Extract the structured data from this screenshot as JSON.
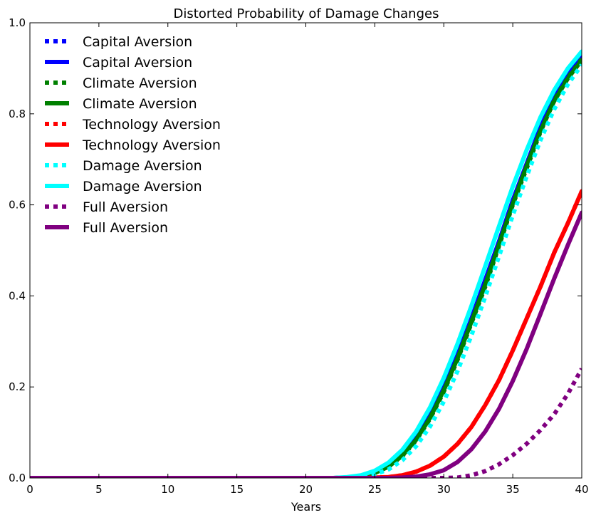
{
  "chart_data": {
    "type": "line",
    "title": "Distorted Probability of Damage Changes",
    "xlabel": "Years",
    "ylabel": "",
    "xlim": [
      0,
      40
    ],
    "ylim": [
      0,
      1.0
    ],
    "x_ticks": [
      0,
      5,
      10,
      15,
      20,
      25,
      30,
      35,
      40
    ],
    "y_ticks": [
      0.0,
      0.2,
      0.4,
      0.6,
      0.8,
      1.0
    ],
    "y_tick_labels": [
      "0.0",
      "0.2",
      "0.4",
      "0.6",
      "0.8",
      "1.0"
    ],
    "grid": false,
    "legend_position": "upper-left",
    "x": [
      0,
      5,
      10,
      15,
      20,
      22,
      23,
      24,
      25,
      26,
      27,
      28,
      29,
      30,
      31,
      32,
      33,
      34,
      35,
      36,
      37,
      38,
      39,
      40
    ],
    "series": [
      {
        "name": "Capital Aversion",
        "style": "dotted",
        "color": "#0000ff",
        "values": [
          0,
          0,
          0,
          0,
          0,
          0,
          0.001,
          0.004,
          0.011,
          0.025,
          0.048,
          0.083,
          0.13,
          0.19,
          0.26,
          0.34,
          0.42,
          0.51,
          0.6,
          0.68,
          0.76,
          0.83,
          0.88,
          0.92
        ]
      },
      {
        "name": "Capital Aversion",
        "style": "solid",
        "color": "#0000ff",
        "values": [
          0,
          0,
          0,
          0,
          0,
          0,
          0.001,
          0.004,
          0.012,
          0.027,
          0.052,
          0.088,
          0.137,
          0.198,
          0.27,
          0.35,
          0.435,
          0.52,
          0.61,
          0.69,
          0.77,
          0.835,
          0.885,
          0.925
        ]
      },
      {
        "name": "Climate Aversion",
        "style": "dotted",
        "color": "#008000",
        "values": [
          0,
          0,
          0,
          0,
          0,
          0,
          0.001,
          0.004,
          0.011,
          0.025,
          0.048,
          0.083,
          0.13,
          0.19,
          0.26,
          0.34,
          0.42,
          0.51,
          0.6,
          0.68,
          0.76,
          0.83,
          0.88,
          0.92
        ]
      },
      {
        "name": "Climate Aversion",
        "style": "solid",
        "color": "#008000",
        "values": [
          0,
          0,
          0,
          0,
          0,
          0,
          0.001,
          0.004,
          0.011,
          0.025,
          0.049,
          0.084,
          0.132,
          0.193,
          0.263,
          0.343,
          0.425,
          0.513,
          0.602,
          0.685,
          0.762,
          0.828,
          0.878,
          0.918
        ]
      },
      {
        "name": "Technology Aversion",
        "style": "dotted",
        "color": "#ff0000",
        "values": [
          0,
          0,
          0,
          0,
          0,
          0,
          0,
          0,
          0.001,
          0.002,
          0.006,
          0.014,
          0.027,
          0.047,
          0.075,
          0.112,
          0.16,
          0.215,
          0.28,
          0.35,
          0.42,
          0.495,
          0.56,
          0.63
        ]
      },
      {
        "name": "Technology Aversion",
        "style": "solid",
        "color": "#ff0000",
        "values": [
          0,
          0,
          0,
          0,
          0,
          0,
          0,
          0,
          0.001,
          0.002,
          0.006,
          0.014,
          0.027,
          0.047,
          0.075,
          0.112,
          0.16,
          0.215,
          0.28,
          0.35,
          0.42,
          0.495,
          0.56,
          0.63
        ]
      },
      {
        "name": "Damage Aversion",
        "style": "dotted",
        "color": "#00ffff",
        "values": [
          0,
          0,
          0,
          0,
          0,
          0,
          0.001,
          0.003,
          0.008,
          0.019,
          0.039,
          0.07,
          0.113,
          0.168,
          0.235,
          0.313,
          0.398,
          0.487,
          0.577,
          0.662,
          0.742,
          0.81,
          0.865,
          0.908
        ]
      },
      {
        "name": "Damage Aversion",
        "style": "solid",
        "color": "#00ffff",
        "values": [
          0,
          0,
          0,
          0,
          0,
          0,
          0.002,
          0.006,
          0.016,
          0.034,
          0.062,
          0.102,
          0.155,
          0.22,
          0.295,
          0.378,
          0.465,
          0.553,
          0.64,
          0.72,
          0.792,
          0.852,
          0.9,
          0.937
        ]
      },
      {
        "name": "Full Aversion",
        "style": "dotted",
        "color": "#800080",
        "values": [
          0,
          0,
          0,
          0,
          0,
          0,
          0,
          0,
          0,
          0,
          0,
          0,
          0,
          0,
          0.001,
          0.006,
          0.015,
          0.03,
          0.05,
          0.075,
          0.105,
          0.14,
          0.185,
          0.24
        ]
      },
      {
        "name": "Full Aversion",
        "style": "solid",
        "color": "#800080",
        "values": [
          0,
          0,
          0,
          0,
          0,
          0,
          0,
          0,
          0,
          0,
          0.001,
          0.003,
          0.008,
          0.017,
          0.035,
          0.063,
          0.102,
          0.152,
          0.213,
          0.283,
          0.36,
          0.438,
          0.512,
          0.583
        ]
      }
    ]
  }
}
